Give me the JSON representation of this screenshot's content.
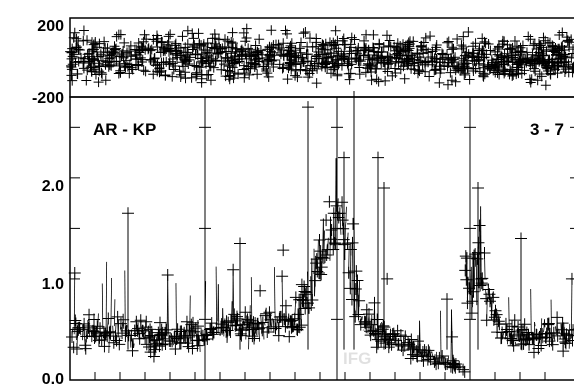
{
  "chart_data": [
    {
      "panel": "top",
      "type": "scatter",
      "marker": "plus",
      "color": "#000000",
      "ylim": [
        -200,
        200
      ],
      "y_ticks": [
        "200",
        "-200"
      ],
      "points": []
    },
    {
      "panel": "bottom",
      "type": "scatter",
      "marker": "plus",
      "color": "#000000",
      "ylim": [
        0.0,
        2.8
      ],
      "y_ticks": [
        "2.0",
        "1.0",
        "0.0"
      ],
      "annotations": [
        "AR - KP",
        "3 - 7",
        "IFG"
      ],
      "points": []
    }
  ]
}
